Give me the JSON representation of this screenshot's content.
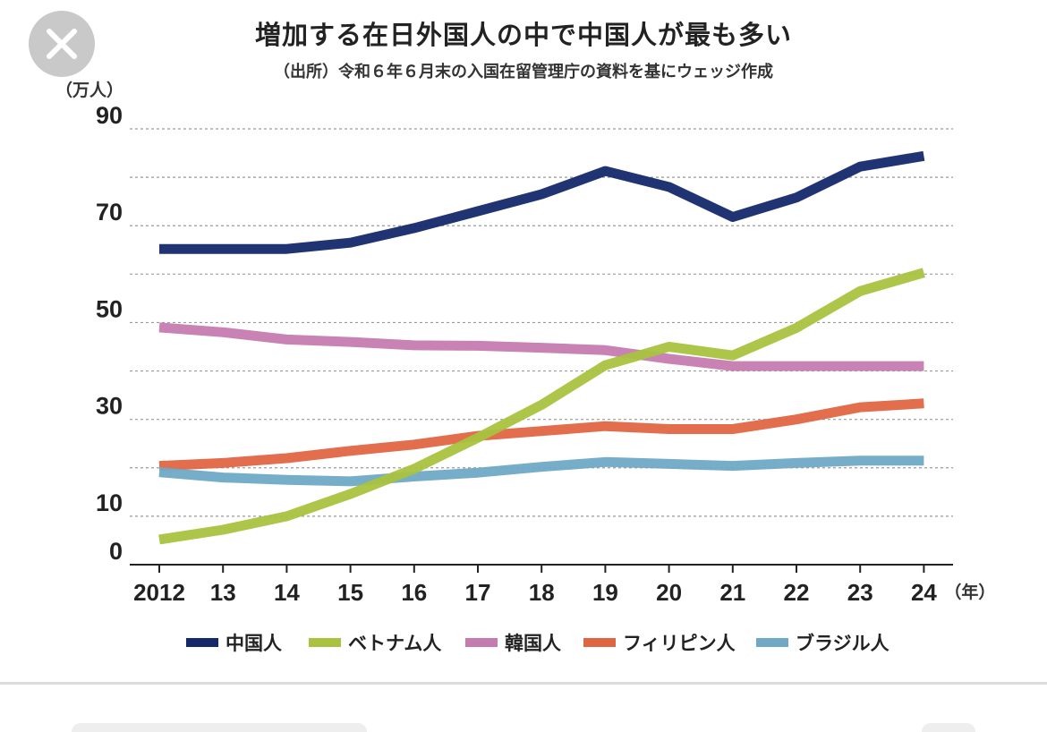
{
  "header": {
    "close_icon": "close-icon",
    "title": "増加する在日外国人の中で中国人が最も多い",
    "subtitle": "（出所）令和６年６月末の入国在留管理庁の資料を基にウェッジ作成"
  },
  "chart_data": {
    "type": "line",
    "title": "増加する在日外国人の中で中国人が最も多い",
    "subtitle": "（出所）令和６年６月末の入国在留管理庁の資料を基にウェッジ作成",
    "ylabel": "（万人）",
    "xlabel": "（年）",
    "ylim": [
      0,
      90
    ],
    "yticks": [
      0,
      10,
      30,
      50,
      70,
      90
    ],
    "gridlines": [
      10,
      20,
      30,
      40,
      50,
      60,
      70,
      80,
      90
    ],
    "grid": true,
    "legend_position": "bottom",
    "x": [
      "2012",
      "13",
      "14",
      "15",
      "16",
      "17",
      "18",
      "19",
      "20",
      "21",
      "22",
      "23",
      "24"
    ],
    "series": [
      {
        "name": "中国人",
        "color": "#14286b",
        "values": [
          65.2,
          65.2,
          65.2,
          66.5,
          69.5,
          73.0,
          76.5,
          81.3,
          78.0,
          71.8,
          75.8,
          82.2,
          84.4
        ]
      },
      {
        "name": "ベトナム人",
        "color": "#a9c23f",
        "values": [
          5.2,
          7.2,
          10.0,
          14.6,
          19.8,
          26.2,
          33.0,
          41.2,
          45.0,
          43.2,
          48.9,
          56.5,
          60.3
        ]
      },
      {
        "name": "韓国人",
        "color": "#c57bb0",
        "values": [
          49.0,
          48.0,
          46.5,
          46.0,
          45.3,
          45.2,
          44.8,
          44.3,
          42.5,
          41.0,
          41.0,
          41.0,
          41.0
        ]
      },
      {
        "name": "フィリピン人",
        "color": "#e06643",
        "values": [
          20.4,
          21.0,
          22.0,
          23.5,
          24.8,
          26.6,
          27.6,
          28.6,
          28.0,
          28.0,
          30.0,
          32.5,
          33.3
        ]
      },
      {
        "name": "ブラジル人",
        "color": "#6fa9c6",
        "values": [
          19.1,
          18.0,
          17.5,
          17.2,
          18.2,
          19.0,
          20.2,
          21.2,
          20.8,
          20.4,
          21.0,
          21.5,
          21.5
        ]
      }
    ]
  }
}
